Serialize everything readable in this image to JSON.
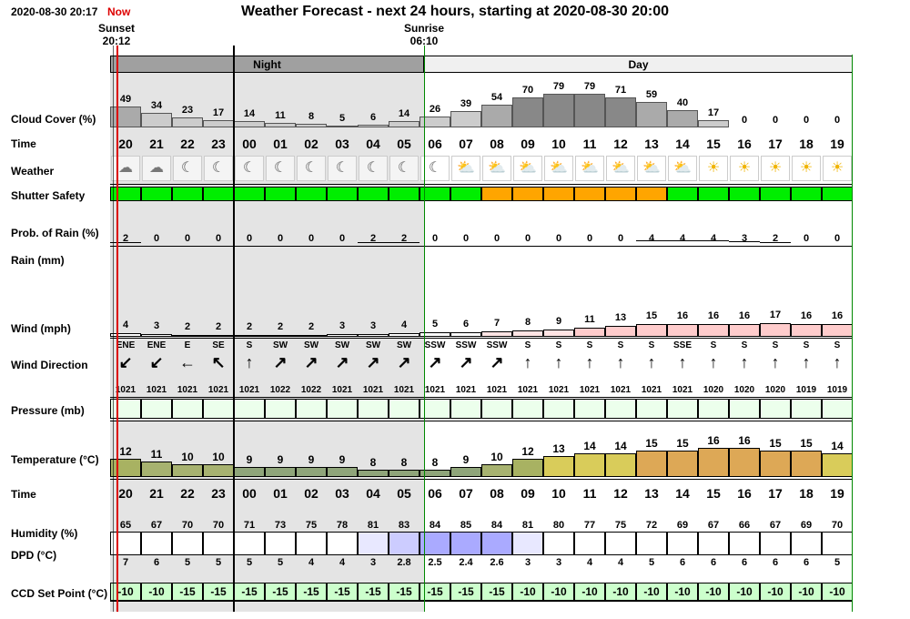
{
  "header": {
    "timestamp": "2020-08-30 20:17",
    "now_label": "Now",
    "title": "Weather Forecast - next 24 hours, starting at 2020-08-30 20:00",
    "sunset_label": "Sunset",
    "sunset_time": "20:12",
    "sunrise_label": "Sunrise",
    "sunrise_time": "06:10",
    "night_label": "Night",
    "day_label": "Day"
  },
  "row_labels": {
    "cloud": "Cloud Cover (%)",
    "time": "Time",
    "weather": "Weather",
    "shutter": "Shutter Safety",
    "rain_prob": "Prob. of Rain (%)",
    "rain": "Rain (mm)",
    "wind": "Wind (mph)",
    "wind_dir": "Wind Direction",
    "pressure": "Pressure (mb)",
    "temperature": "Temperature (°C)",
    "time2": "Time",
    "humidity": "Humidity (%)",
    "dpd": "DPD (°C)",
    "ccd": "CCD Set Point (°C)"
  },
  "forecast": {
    "hours": [
      "20",
      "21",
      "22",
      "23",
      "00",
      "01",
      "02",
      "03",
      "04",
      "05",
      "06",
      "07",
      "08",
      "09",
      "10",
      "11",
      "12",
      "13",
      "14",
      "15",
      "16",
      "17",
      "18",
      "19"
    ],
    "cloud_cover": [
      49,
      34,
      23,
      17,
      14,
      11,
      8,
      5,
      6,
      14,
      26,
      39,
      54,
      70,
      79,
      79,
      71,
      59,
      40,
      17,
      0,
      0,
      0,
      0
    ],
    "weather_icons": [
      "partly-cloudy-night-icon",
      "partly-cloudy-night-icon",
      "moon-icon",
      "moon-icon",
      "moon-icon",
      "moon-icon",
      "moon-icon",
      "moon-icon",
      "moon-icon",
      "moon-icon",
      "moon-icon",
      "partly-cloudy-day-icon",
      "partly-cloudy-day-icon",
      "partly-cloudy-day-icon",
      "partly-cloudy-day-icon",
      "partly-cloudy-day-icon",
      "partly-cloudy-day-icon",
      "partly-cloudy-day-icon",
      "partly-cloudy-day-icon",
      "sun-icon",
      "sun-icon",
      "sun-icon",
      "sun-icon",
      "sun-icon"
    ],
    "shutter_safety": [
      "safe",
      "safe",
      "safe",
      "safe",
      "safe",
      "safe",
      "safe",
      "safe",
      "safe",
      "safe",
      "safe",
      "safe",
      "caution",
      "caution",
      "caution",
      "caution",
      "caution",
      "caution",
      "safe",
      "safe",
      "safe",
      "safe",
      "safe",
      "safe"
    ],
    "rain_prob": [
      2,
      0,
      0,
      0,
      0,
      0,
      0,
      0,
      2,
      2,
      0,
      0,
      0,
      0,
      0,
      0,
      0,
      4,
      4,
      4,
      3,
      2,
      0,
      0
    ],
    "wind_speed": [
      4,
      3,
      2,
      2,
      2,
      2,
      2,
      3,
      3,
      4,
      5,
      6,
      7,
      8,
      9,
      11,
      13,
      15,
      16,
      16,
      16,
      17,
      16,
      16
    ],
    "wind_dir": [
      "ENE",
      "ENE",
      "E",
      "SE",
      "S",
      "SW",
      "SW",
      "SW",
      "SW",
      "SW",
      "SSW",
      "SSW",
      "SSW",
      "S",
      "S",
      "S",
      "S",
      "S",
      "SSE",
      "S",
      "S",
      "S",
      "S",
      "S"
    ],
    "pressure": [
      1021,
      1021,
      1021,
      1021,
      1021,
      1022,
      1022,
      1021,
      1021,
      1021,
      1021,
      1021,
      1021,
      1021,
      1021,
      1021,
      1021,
      1021,
      1021,
      1020,
      1020,
      1020,
      1019,
      1019
    ],
    "temperature": [
      12,
      11,
      10,
      10,
      9,
      9,
      9,
      9,
      8,
      8,
      8,
      9,
      10,
      12,
      13,
      14,
      14,
      15,
      15,
      16,
      16,
      15,
      15,
      14
    ],
    "humidity": [
      65,
      67,
      70,
      70,
      71,
      73,
      75,
      78,
      81,
      83,
      84,
      85,
      84,
      81,
      80,
      77,
      75,
      72,
      69,
      67,
      66,
      67,
      69,
      70
    ],
    "dpd": [
      "7",
      "6",
      "5",
      "5",
      "5",
      "5",
      "4",
      "4",
      "3",
      "2.8",
      "2.5",
      "2.4",
      "2.6",
      "3",
      "3",
      "4",
      "4",
      "5",
      "6",
      "6",
      "6",
      "6",
      "6",
      "5"
    ],
    "ccd_set_point": [
      -10,
      -10,
      -15,
      -15,
      -15,
      -15,
      -15,
      -15,
      -15,
      -15,
      -15,
      -15,
      -15,
      -10,
      -10,
      -10,
      -10,
      -10,
      -10,
      -10,
      -10,
      -10,
      -10,
      -10
    ]
  },
  "colors": {
    "night_shade": "#e4e4e4",
    "night_band": "#a0a0a0",
    "shutter_safe": "#00ee00",
    "shutter_caution": "#ffa500",
    "ccd_fill": "#ccffcc",
    "pressure_fill": "#ecffec",
    "now_line": "#dd0000",
    "day_border": "#008800",
    "humidity_high": "#aaaaff",
    "humidity_mid": "#ccccff",
    "humidity_low": "#e8e8ff",
    "wind_high": "#ffcccc",
    "wind_mid": "#ffe4e4"
  }
}
